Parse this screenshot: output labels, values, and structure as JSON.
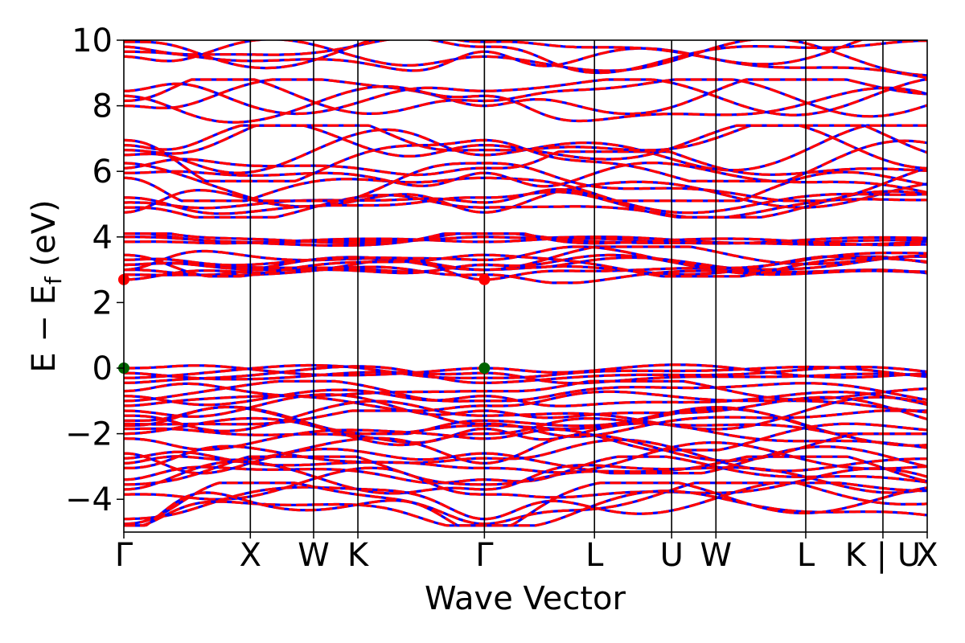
{
  "chart_data": {
    "type": "line",
    "xlabel": "Wave Vector",
    "ylabel": "E − E_f (eV)",
    "ylabel_parts": {
      "main": "E − E",
      "sub": "f",
      "unit": " (eV)"
    },
    "ylim": [
      -5,
      10
    ],
    "y_ticks": [
      -4,
      -2,
      0,
      2,
      4,
      6,
      8,
      10
    ],
    "y_tick_labels": [
      "−4",
      "−2",
      "0",
      "2",
      "4",
      "6",
      "8",
      "10"
    ],
    "kpath": {
      "positions": [
        0,
        1.0,
        1.5,
        1.85,
        2.85,
        3.72,
        4.33,
        4.68,
        5.39,
        6.0,
        6.35
      ],
      "labels": [
        "Γ",
        "X",
        "W",
        "K",
        "Γ",
        "L",
        "U",
        "W",
        "L",
        "K | U",
        "X"
      ],
      "xlim": [
        0,
        6.35
      ]
    },
    "band_line_colors": [
      "#0000ff",
      "#ff0000"
    ],
    "line_style": "blue solid overlaid with red dashed (spin up / spin down)",
    "valence_bands_approx_ev": [
      {
        "name": "VB top",
        "at_gamma": 0.0,
        "range": [
          -0.4,
          0.0
        ]
      },
      {
        "name": "VB",
        "at_gamma": -0.7,
        "range": [
          -1.2,
          -0.5
        ]
      },
      {
        "name": "VB",
        "at_gamma": -1.3,
        "range": [
          -1.9,
          -0.9
        ]
      },
      {
        "name": "VB",
        "at_gamma": -1.7,
        "range": [
          -2.4,
          -1.4
        ]
      },
      {
        "name": "VB",
        "at_gamma": -2.6,
        "range": [
          -3.1,
          -2.1
        ]
      },
      {
        "name": "VB",
        "at_gamma": -3.4,
        "range": [
          -3.9,
          -2.8
        ]
      },
      {
        "name": "VB bottom",
        "at_gamma": -4.6,
        "range": [
          -4.7,
          -3.6
        ]
      }
    ],
    "conduction_bands_approx_ev": [
      {
        "name": "CB min",
        "at_gamma": 2.7,
        "range": [
          2.7,
          3.3
        ]
      },
      {
        "name": "CB",
        "at_gamma": 3.0,
        "range": [
          2.9,
          3.6
        ]
      },
      {
        "name": "CB",
        "at_gamma": 3.85,
        "range": [
          3.8,
          4.0
        ]
      },
      {
        "name": "CB",
        "at_gamma": 4.75,
        "range": [
          4.7,
          5.6
        ]
      },
      {
        "name": "CB",
        "at_gamma": 5.8,
        "range": [
          5.2,
          6.5
        ]
      },
      {
        "name": "CB",
        "at_gamma": 6.5,
        "range": [
          5.8,
          7.3
        ]
      },
      {
        "name": "CB",
        "at_gamma": 8.0,
        "range": [
          7.4,
          8.7
        ]
      },
      {
        "name": "CB",
        "at_gamma": 9.5,
        "range": [
          8.8,
          10.0
        ]
      }
    ],
    "markers": [
      {
        "label": "CBM",
        "k": 0,
        "energy": 2.7,
        "color": "#ff0000"
      },
      {
        "label": "CBM",
        "k": 2.85,
        "energy": 2.7,
        "color": "#ff0000"
      },
      {
        "label": "VBM",
        "k": 0,
        "energy": 0.0,
        "color": "#006400"
      },
      {
        "label": "VBM",
        "k": 2.85,
        "energy": 0.0,
        "color": "#006400"
      }
    ],
    "grid": false,
    "legend": "none"
  }
}
